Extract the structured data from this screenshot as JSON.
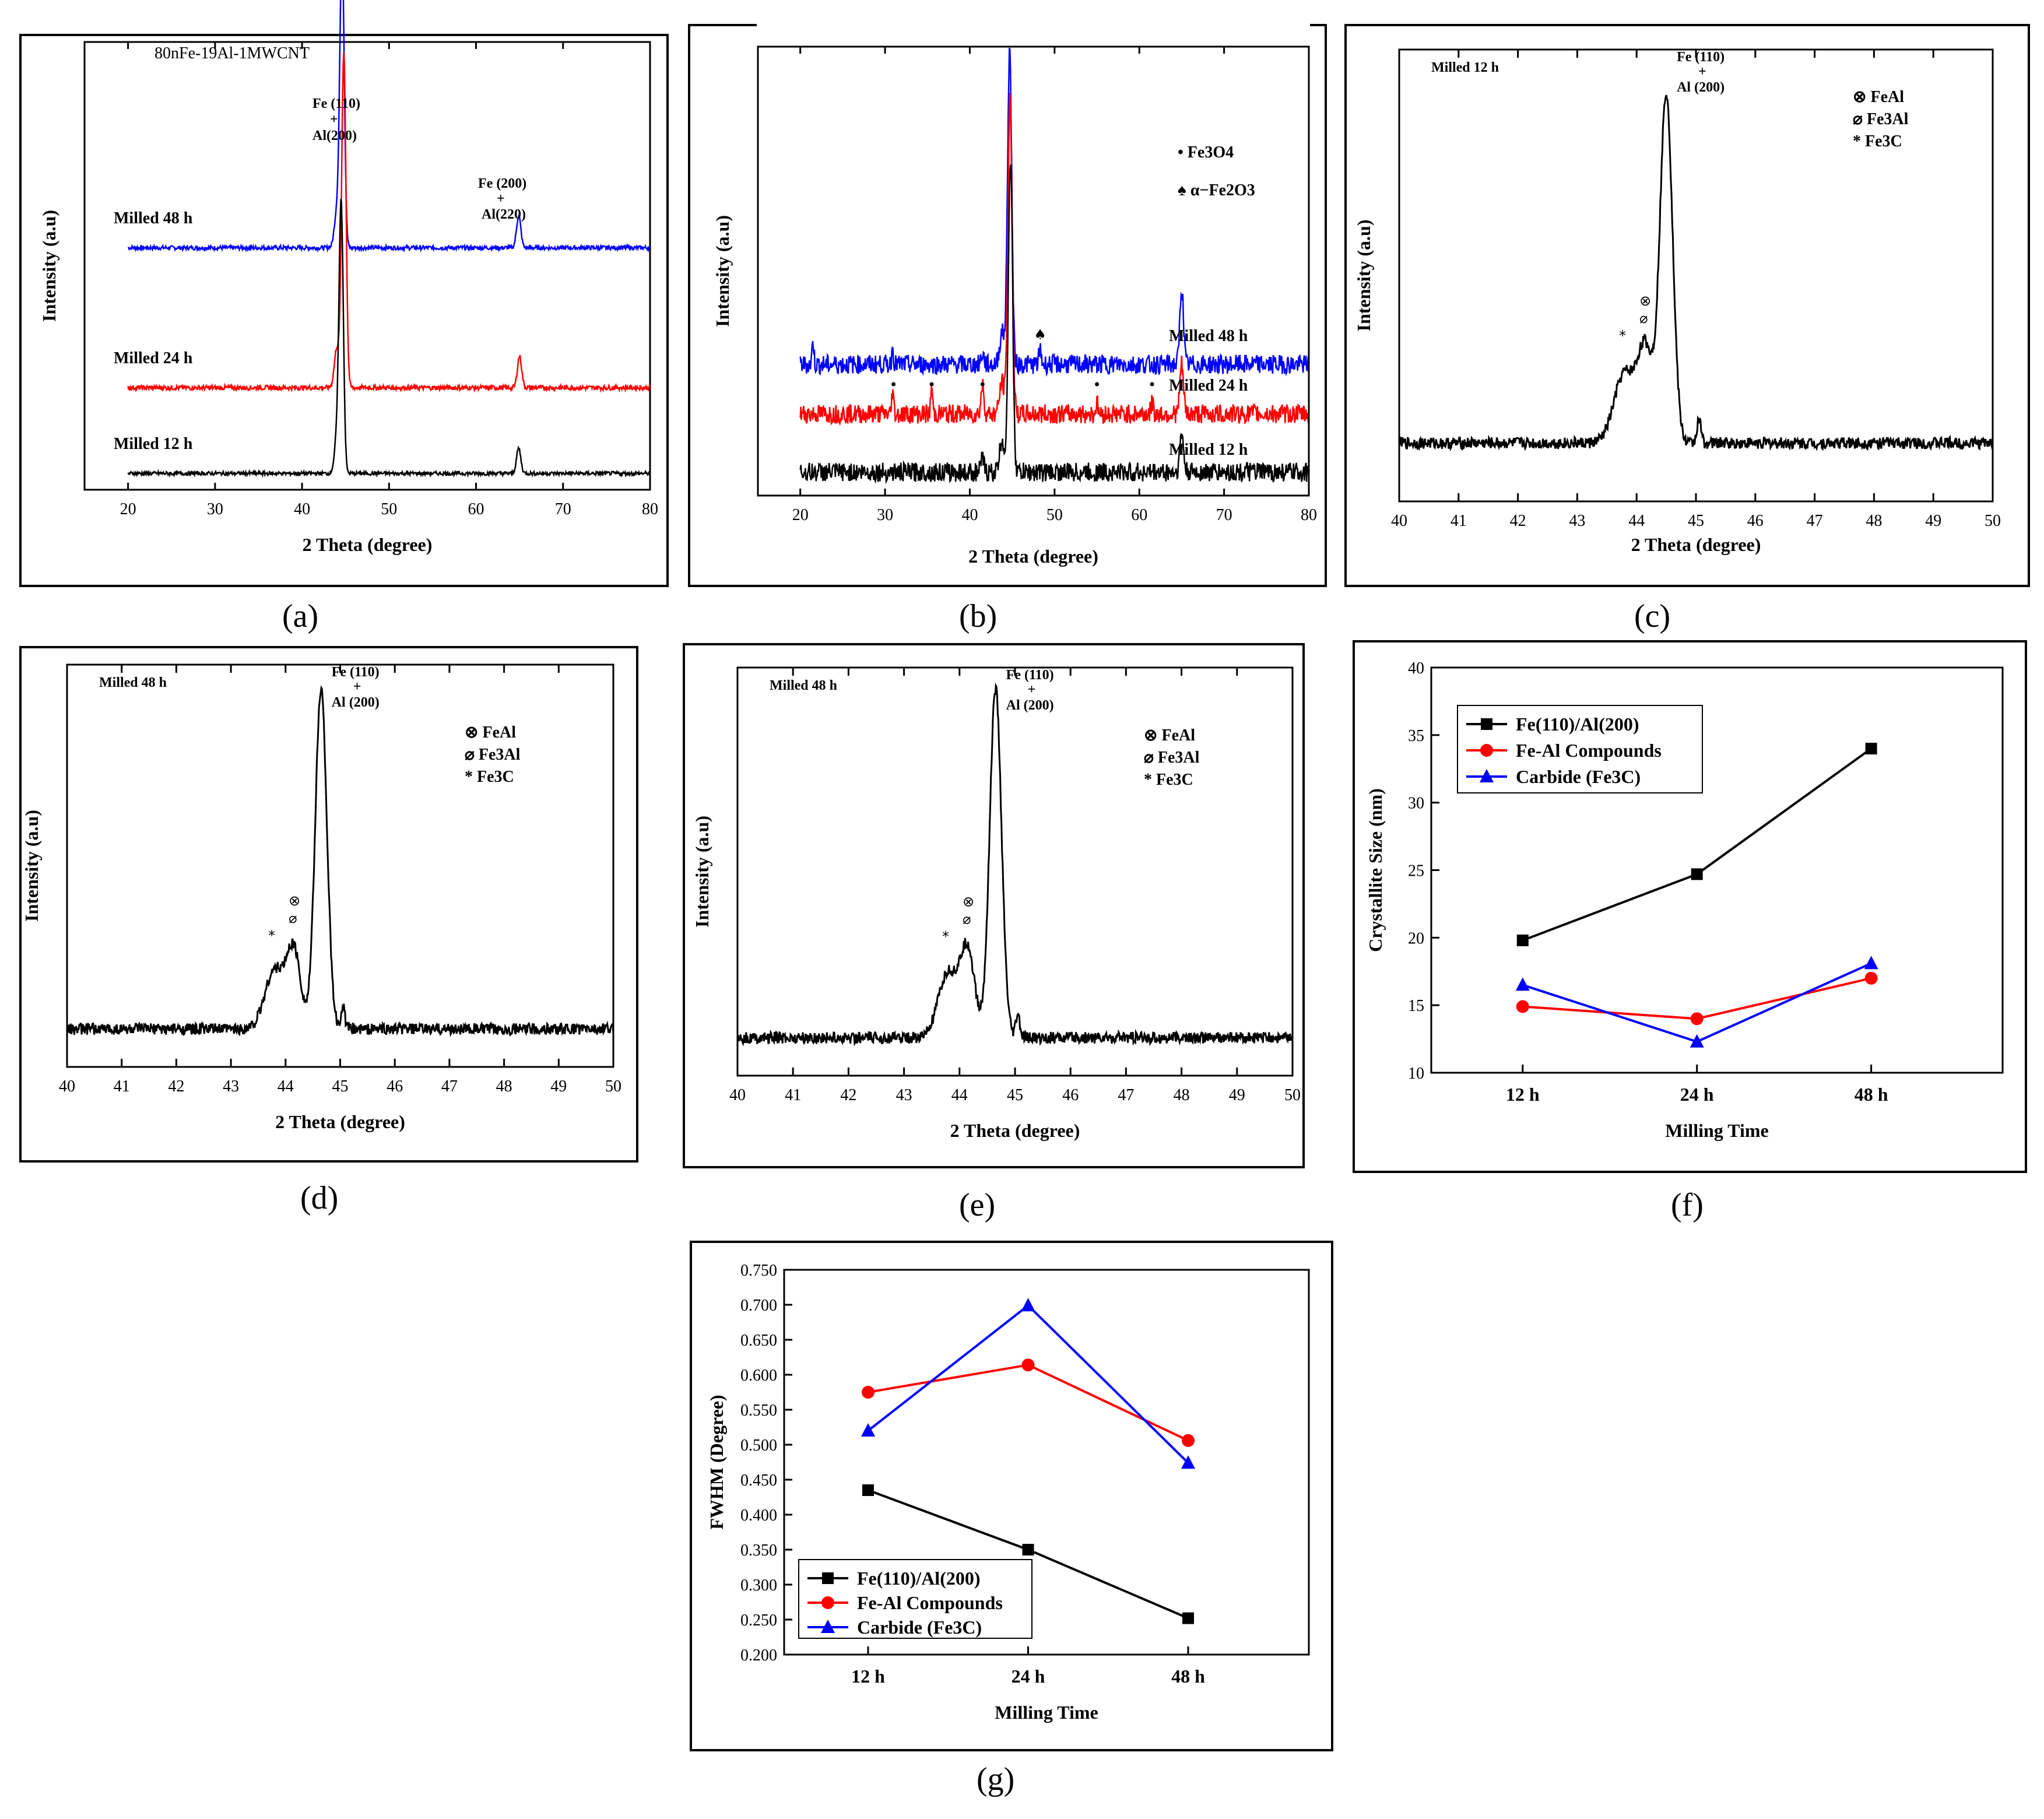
{
  "captions": {
    "a": "(a)",
    "b": "(b)",
    "c": "(c)",
    "d": "(d)",
    "e": "(e)",
    "f": "(f)",
    "g": "(g)"
  },
  "chart_data": [
    {
      "id": "a",
      "type": "line",
      "title": "80nFe-19Al-1MWCNT",
      "xlabel": "2 Theta (degree)",
      "ylabel": "Intensity (a.u)",
      "xlim": [
        15,
        80
      ],
      "xticks": [
        20,
        30,
        40,
        50,
        60,
        70,
        80
      ],
      "series": [
        {
          "name": "Milled 48 h",
          "color": "#0000ff",
          "peaks": [
            [
              44.6,
              0.85
            ],
            [
              64.9,
              0.09
            ]
          ]
        },
        {
          "name": "Milled 24 h",
          "color": "#ff0000",
          "peaks": [
            [
              44.8,
              0.85
            ],
            [
              65.0,
              0.08
            ]
          ]
        },
        {
          "name": "Milled 12 h",
          "color": "#000000",
          "peaks": [
            [
              44.5,
              0.85
            ],
            [
              64.9,
              0.08
            ]
          ]
        }
      ],
      "annotations": [
        {
          "text": "Fe (110)",
          "sub": "+",
          "text2": "Al(200)"
        },
        {
          "text": "Fe (200)",
          "sub": "+",
          "text2": "Al(220)"
        }
      ]
    },
    {
      "id": "b",
      "type": "line",
      "xlabel": "2 Theta (degree)",
      "ylabel": "Intensity (a.u)",
      "xlim": [
        15,
        80
      ],
      "xticks": [
        20,
        30,
        40,
        50,
        60,
        70,
        80
      ],
      "series": [
        {
          "name": "Milled 48 h",
          "color": "#0000ff",
          "peaks": [
            [
              44.7,
              1.0
            ],
            [
              65.0,
              0.35
            ]
          ]
        },
        {
          "name": "Milled 24 h",
          "color": "#ff0000",
          "peaks": [
            [
              44.8,
              1.0
            ],
            [
              65.0,
              0.3
            ]
          ]
        },
        {
          "name": "Milled 12 h",
          "color": "#000000",
          "peaks": [
            [
              44.6,
              1.0
            ],
            [
              65.0,
              0.25
            ]
          ]
        }
      ],
      "legend": [
        "Fe3O4",
        "α−Fe2O3"
      ],
      "markers_positions": [
        31.0,
        35.5,
        41.5,
        55.0,
        61.5
      ]
    },
    {
      "id": "c",
      "type": "line",
      "title": "Milled 12 h",
      "xlabel": "2 Theta (degree)",
      "ylabel": "Intensity (a.u)",
      "xlim": [
        40,
        50
      ],
      "xticks": [
        40,
        41,
        42,
        43,
        44,
        45,
        46,
        47,
        48,
        49,
        50
      ],
      "peak": {
        "x": 44.5,
        "label": "Fe (110)",
        "label2": "+",
        "label3": "Al (200)"
      },
      "legend": [
        "FeAl",
        "Fe3Al",
        "Fe3C"
      ]
    },
    {
      "id": "d",
      "type": "line",
      "title": "Milled 48 h",
      "xlabel": "2 Theta (degree)",
      "ylabel": "Intensity (a.u)",
      "xlim": [
        40,
        50
      ],
      "xticks": [
        40,
        41,
        42,
        43,
        44,
        45,
        46,
        47,
        48,
        49,
        50
      ],
      "peak": {
        "x": 44.65,
        "label": "Fe (110)",
        "label2": "+",
        "label3": "Al (200)"
      },
      "legend": [
        "FeAl",
        "Fe3Al",
        "Fe3C"
      ]
    },
    {
      "id": "e",
      "type": "line",
      "title": "Milled 48 h",
      "xlabel": "2 Theta (degree)",
      "ylabel": "Intensity (a.u)",
      "xlim": [
        40,
        50
      ],
      "xticks": [
        40,
        41,
        42,
        43,
        44,
        45,
        46,
        47,
        48,
        49,
        50
      ],
      "peak": {
        "x": 44.65,
        "label": "Fe (110)",
        "label2": "+",
        "label3": "Al (200)"
      },
      "legend": [
        "FeAl",
        "Fe3Al",
        "Fe3C"
      ]
    },
    {
      "id": "f",
      "type": "line",
      "xlabel": "Milling Time",
      "ylabel": "Crystallite Size (nm)",
      "categories": [
        "12 h",
        "24 h",
        "48 h"
      ],
      "ylim": [
        10,
        40
      ],
      "yticks": [
        10,
        15,
        20,
        25,
        30,
        35,
        40
      ],
      "series": [
        {
          "name": "Fe(110)/Al(200)",
          "color": "#000000",
          "marker": "square",
          "values": [
            19.8,
            24.7,
            34.0
          ]
        },
        {
          "name": "Fe-Al Compounds",
          "color": "#ff0000",
          "marker": "circle",
          "values": [
            14.9,
            14.0,
            17.0
          ]
        },
        {
          "name": "Carbide (Fe3C)",
          "color": "#0000ff",
          "marker": "triangle",
          "values": [
            16.5,
            12.3,
            18.1
          ]
        }
      ]
    },
    {
      "id": "g",
      "type": "line",
      "xlabel": "Milling Time",
      "ylabel": "FWHM (Degree)",
      "categories": [
        "12 h",
        "24 h",
        "48 h"
      ],
      "ylim": [
        0.2,
        0.75
      ],
      "yticks": [
        "0.200",
        "0.250",
        "0.300",
        "0.350",
        "0.400",
        "0.450",
        "0.500",
        "0.550",
        "0.600",
        "0.650",
        "0.700",
        "0.750"
      ],
      "series": [
        {
          "name": "Fe(110)/Al(200)",
          "color": "#000000",
          "marker": "square",
          "values": [
            0.435,
            0.35,
            0.252
          ]
        },
        {
          "name": "Fe-Al Compounds",
          "color": "#ff0000",
          "marker": "circle",
          "values": [
            0.575,
            0.614,
            0.506
          ]
        },
        {
          "name": "Carbide (Fe3C)",
          "color": "#0000ff",
          "marker": "triangle",
          "values": [
            0.52,
            0.699,
            0.474
          ]
        }
      ]
    }
  ]
}
